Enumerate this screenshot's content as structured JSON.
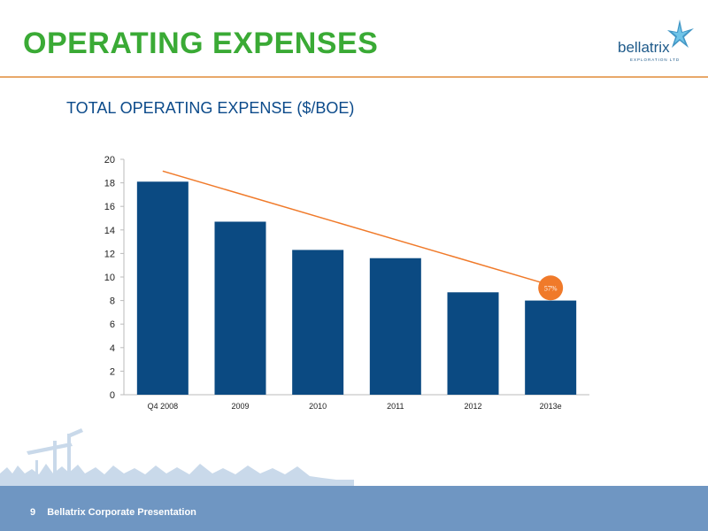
{
  "header": {
    "title": "OPERATING EXPENSES",
    "logo_text": "bellatrix",
    "logo_subtext": "EXPLORATION LTD"
  },
  "chart_data": {
    "type": "bar",
    "title": "TOTAL OPERATING EXPENSE ($/BOE)",
    "categories": [
      "Q4 2008",
      "2009",
      "2010",
      "2011",
      "2012",
      "2013e"
    ],
    "values": [
      18.1,
      14.7,
      12.3,
      11.6,
      8.7,
      8.0
    ],
    "ylim": [
      0,
      20
    ],
    "yticks": [
      0,
      2,
      4,
      6,
      8,
      10,
      12,
      14,
      16,
      18,
      20
    ],
    "xlabel": "",
    "ylabel": "",
    "grid": false,
    "trendline": {
      "from_value": 19.0,
      "to_value": 9.3
    },
    "annotation": {
      "text": "57%",
      "category": "2013e"
    },
    "colors": {
      "bar": "#0b4a82",
      "trend": "#f07a2a",
      "badge": "#f07a2a"
    }
  },
  "footer": {
    "page_number": "9",
    "text": "Bellatrix Corporate Presentation"
  },
  "colors": {
    "title": "#3aaa35",
    "rule": "#e8a86a",
    "footer_band": "#6f96c2",
    "heading": "#0b4a8a"
  }
}
